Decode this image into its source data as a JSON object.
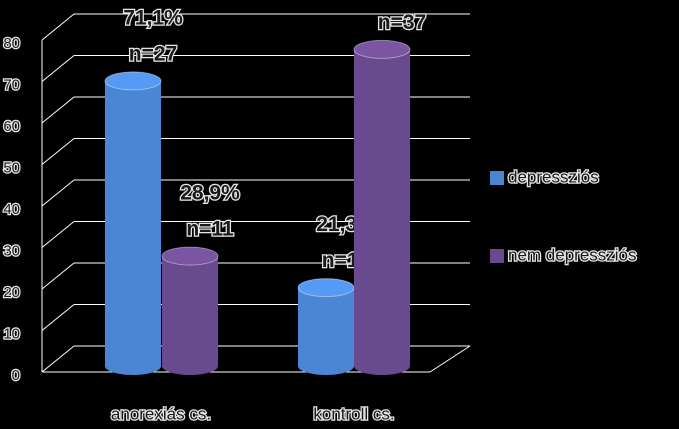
{
  "chart_data": {
    "type": "bar3d",
    "categories": [
      "anorexiás cs.",
      "kontroll cs."
    ],
    "series": [
      {
        "name": "depressziós",
        "color": "#4a86d4",
        "values": [
          71.1,
          21.3
        ],
        "value_labels": [
          "71,1%",
          "21,3%"
        ],
        "count_labels": [
          "n=27",
          "n=10"
        ]
      },
      {
        "name": "nem depressziós",
        "color": "#6a4a8e",
        "values": [
          28.9,
          78.7
        ],
        "value_labels": [
          "28,9%",
          "78,7%"
        ],
        "count_labels": [
          "n=11",
          "n=37"
        ]
      }
    ],
    "ylim": [
      0,
      80
    ],
    "yticks": [
      0,
      10,
      20,
      30,
      40,
      50,
      60,
      70,
      80
    ],
    "grid": true
  }
}
